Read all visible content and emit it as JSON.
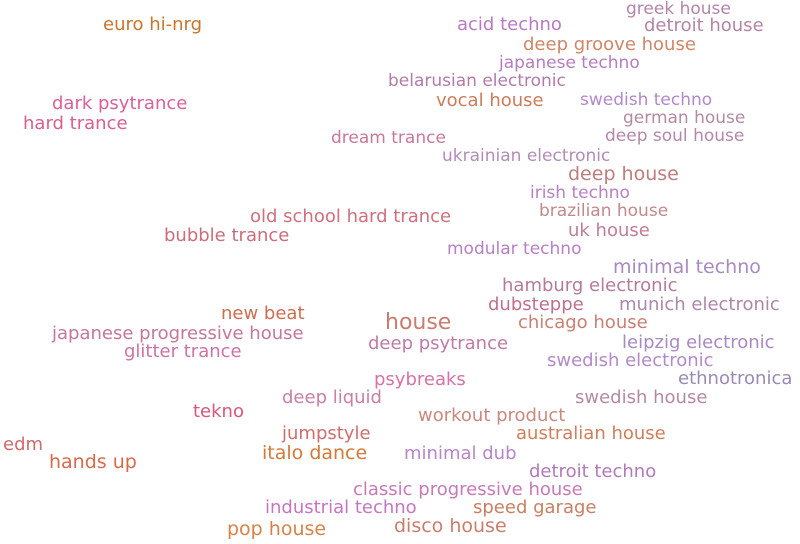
{
  "terms": [
    {
      "id": "t0",
      "label": "greek house",
      "color": "#b385ab"
    },
    {
      "id": "t1",
      "label": "euro hi-nrg",
      "color": "#c9742c"
    },
    {
      "id": "t2",
      "label": "acid techno",
      "color": "#b87ac4"
    },
    {
      "id": "t3",
      "label": "detroit house",
      "color": "#b585a5"
    },
    {
      "id": "t4",
      "label": "deep groove house",
      "color": "#cf8666"
    },
    {
      "id": "t5",
      "label": "japanese techno",
      "color": "#b57dc0"
    },
    {
      "id": "t6",
      "label": "belarusian electronic",
      "color": "#b37ba9"
    },
    {
      "id": "t7",
      "label": "dark psytrance",
      "color": "#d9609b"
    },
    {
      "id": "t8",
      "label": "vocal house",
      "color": "#cc7c5a"
    },
    {
      "id": "t9",
      "label": "swedish techno",
      "color": "#b488c9"
    },
    {
      "id": "t10",
      "label": "hard trance",
      "color": "#d9608a"
    },
    {
      "id": "t11",
      "label": "german house",
      "color": "#b48aa0"
    },
    {
      "id": "t12",
      "label": "dream trance",
      "color": "#c8789b"
    },
    {
      "id": "t13",
      "label": "deep soul house",
      "color": "#b487a9"
    },
    {
      "id": "t14",
      "label": "ukrainian electronic",
      "color": "#b48bb8"
    },
    {
      "id": "t15",
      "label": "deep house",
      "color": "#bf7d7d"
    },
    {
      "id": "t16",
      "label": "irish techno",
      "color": "#b880c4"
    },
    {
      "id": "t17",
      "label": "brazilian house",
      "color": "#c08a8c"
    },
    {
      "id": "t18",
      "label": "old school hard trance",
      "color": "#d0707e"
    },
    {
      "id": "t19",
      "label": "uk house",
      "color": "#c07e94"
    },
    {
      "id": "t20",
      "label": "bubble trance",
      "color": "#cc6e7a"
    },
    {
      "id": "t21",
      "label": "modular techno",
      "color": "#b87fc9"
    },
    {
      "id": "t22",
      "label": "minimal techno",
      "color": "#a88ac2"
    },
    {
      "id": "t23",
      "label": "hamburg electronic",
      "color": "#b67a9a"
    },
    {
      "id": "t24",
      "label": "dubsteppe",
      "color": "#c07088"
    },
    {
      "id": "t25",
      "label": "munich electronic",
      "color": "#ad87a8"
    },
    {
      "id": "t26",
      "label": "new beat",
      "color": "#cf6d50"
    },
    {
      "id": "t27",
      "label": "house",
      "color": "#c97d6e"
    },
    {
      "id": "t28",
      "label": "chicago house",
      "color": "#c88072"
    },
    {
      "id": "t29",
      "label": "japanese progressive house",
      "color": "#c47898"
    },
    {
      "id": "t30",
      "label": "leipzig electronic",
      "color": "#a88ac4"
    },
    {
      "id": "t31",
      "label": "glitter trance",
      "color": "#cd72a6"
    },
    {
      "id": "t32",
      "label": "deep psytrance",
      "color": "#bf7aa5"
    },
    {
      "id": "t33",
      "label": "swedish electronic",
      "color": "#b48ac8"
    },
    {
      "id": "t34",
      "label": "ethnotronica",
      "color": "#9b8ab5"
    },
    {
      "id": "t35",
      "label": "psybreaks",
      "color": "#d572a9"
    },
    {
      "id": "t36",
      "label": "swedish house",
      "color": "#b68a9e"
    },
    {
      "id": "t37",
      "label": "deep liquid",
      "color": "#c880a4"
    },
    {
      "id": "t38",
      "label": "tekno",
      "color": "#d9577a"
    },
    {
      "id": "t39",
      "label": "workout product",
      "color": "#c88a7e"
    },
    {
      "id": "t40",
      "label": "jumpstyle",
      "color": "#d06e6e"
    },
    {
      "id": "t41",
      "label": "australian house",
      "color": "#cf7f5b"
    },
    {
      "id": "t42",
      "label": "edm",
      "color": "#d06a6a"
    },
    {
      "id": "t43",
      "label": "hands up",
      "color": "#d86a4a"
    },
    {
      "id": "t44",
      "label": "italo dance",
      "color": "#d27a3a"
    },
    {
      "id": "t45",
      "label": "minimal dub",
      "color": "#b686c8"
    },
    {
      "id": "t46",
      "label": "detroit techno",
      "color": "#b17ab8"
    },
    {
      "id": "t47",
      "label": "classic progressive house",
      "color": "#c87ab5"
    },
    {
      "id": "t48",
      "label": "industrial techno",
      "color": "#c675c2"
    },
    {
      "id": "t49",
      "label": "speed garage",
      "color": "#c88062"
    },
    {
      "id": "t50",
      "label": "pop house",
      "color": "#d78248"
    },
    {
      "id": "t51",
      "label": "disco house",
      "color": "#c97e6c"
    }
  ]
}
